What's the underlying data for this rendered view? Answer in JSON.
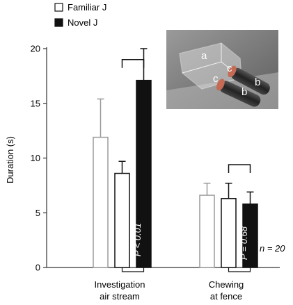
{
  "chart_data": {
    "type": "bar",
    "title": "",
    "xlabel": "",
    "ylabel": "Duration (s)",
    "ylim": [
      0,
      20
    ],
    "yticks": [
      0,
      5,
      10,
      15,
      20
    ],
    "legend": {
      "placement": "top-left",
      "entries": [
        {
          "name": "Familiar J",
          "fill": "#ffffff"
        },
        {
          "name": "Novel J",
          "fill": "#111111"
        }
      ]
    },
    "categories": [
      {
        "label_lines": [
          "Investigation",
          "air stream"
        ]
      },
      {
        "label_lines": [
          "Chewing",
          "at fence"
        ]
      }
    ],
    "series": [
      {
        "name": "",
        "style": "gray-outline",
        "values": [
          11.9,
          6.6
        ],
        "errors": [
          3.5,
          1.1
        ]
      },
      {
        "name": "Familiar J",
        "style": "white",
        "values": [
          8.6,
          6.3
        ],
        "errors": [
          1.1,
          1.4
        ]
      },
      {
        "name": "Novel J",
        "style": "black",
        "values": [
          17.1,
          5.8
        ],
        "errors": [
          2.9,
          1.1
        ]
      }
    ],
    "annotations": {
      "p_values": [
        "P < 0.01",
        "P = 0.68"
      ],
      "n_label": "n = 20"
    },
    "inset_photo": {
      "labels": [
        "a",
        "c",
        "c",
        "b",
        "b"
      ]
    },
    "colors": {
      "axis": "#333333",
      "gray": "#9a9a9a",
      "black": "#111111"
    }
  }
}
